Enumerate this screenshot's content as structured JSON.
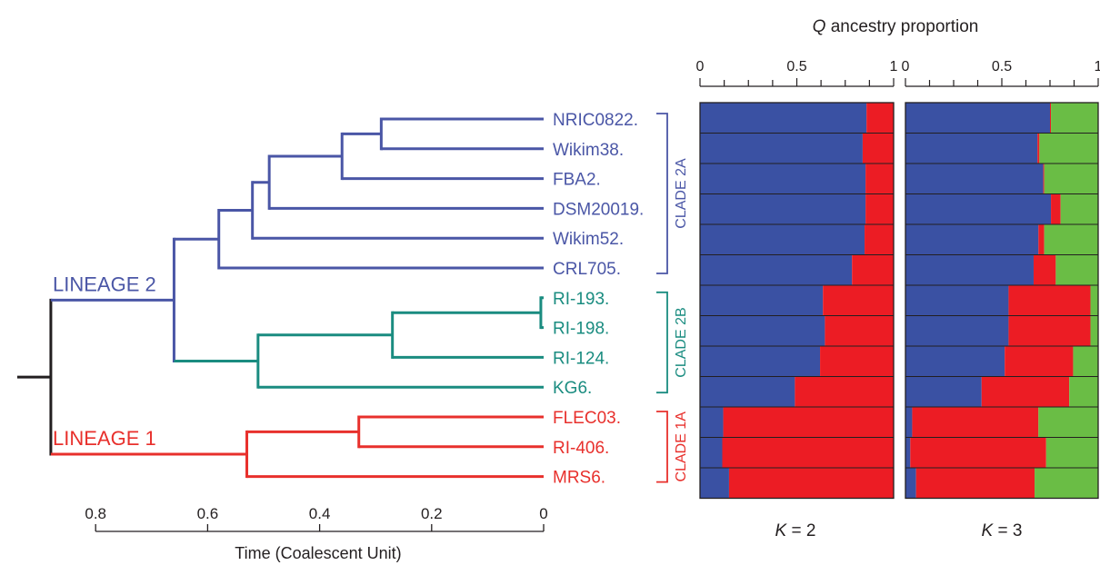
{
  "chart_data": [
    {
      "type": "tree",
      "title": "",
      "xlabel": "Time (Coalescent Unit)",
      "ylabel": "",
      "xlim": [
        0.88,
        0
      ],
      "xticks": [
        0.8,
        0.6,
        0.4,
        0.2,
        0
      ],
      "xtick_labels": [
        "0.8",
        "0.6",
        "0.4",
        "0.2",
        "0"
      ],
      "lineages": [
        {
          "name": "LINEAGE 2",
          "color": "#4a56a6"
        },
        {
          "name": "LINEAGE 1",
          "color": "#e8302c"
        }
      ],
      "clades": [
        {
          "name": "CLADE 2A",
          "color": "#4a56a6",
          "tips": [
            "NRIC0822.",
            "Wikim38.",
            "FBA2.",
            "DSM20019.",
            "Wikim52.",
            "CRL705."
          ]
        },
        {
          "name": "CLADE 2B",
          "color": "#1a8c80",
          "tips": [
            "RI-193.",
            "RI-198.",
            "RI-124.",
            "KG6."
          ]
        },
        {
          "name": "CLADE 1A",
          "color": "#e8302c",
          "tips": [
            "FLEC03.",
            "RI-406.",
            "MRS6."
          ]
        }
      ],
      "tips": [
        {
          "label": "NRIC0822.",
          "color": "#4a56a6"
        },
        {
          "label": "Wikim38.",
          "color": "#4a56a6"
        },
        {
          "label": "FBA2.",
          "color": "#4a56a6"
        },
        {
          "label": "DSM20019.",
          "color": "#4a56a6"
        },
        {
          "label": "Wikim52.",
          "color": "#4a56a6"
        },
        {
          "label": "CRL705.",
          "color": "#4a56a6"
        },
        {
          "label": "RI-193.",
          "color": "#1a8c80"
        },
        {
          "label": "RI-198.",
          "color": "#1a8c80"
        },
        {
          "label": "RI-124.",
          "color": "#1a8c80"
        },
        {
          "label": "KG6.",
          "color": "#1a8c80"
        },
        {
          "label": "FLEC03.",
          "color": "#e8302c"
        },
        {
          "label": "RI-406.",
          "color": "#e8302c"
        },
        {
          "label": "MRS6.",
          "color": "#e8302c"
        }
      ],
      "nodes": [
        {
          "id": "n_a",
          "time": 0.29,
          "children": [
            "NRIC0822.",
            "Wikim38."
          ]
        },
        {
          "id": "n_b",
          "time": 0.36,
          "children": [
            "n_a",
            "FBA2."
          ]
        },
        {
          "id": "n_c",
          "time": 0.49,
          "children": [
            "n_b",
            "DSM20019."
          ]
        },
        {
          "id": "n_d",
          "time": 0.52,
          "children": [
            "n_c",
            "Wikim52."
          ]
        },
        {
          "id": "n_e",
          "time": 0.58,
          "children": [
            "n_d",
            "CRL705."
          ]
        },
        {
          "id": "n_f",
          "time": 0.005,
          "children": [
            "RI-193.",
            "RI-198."
          ]
        },
        {
          "id": "n_g",
          "time": 0.27,
          "children": [
            "n_f",
            "RI-124."
          ]
        },
        {
          "id": "n_h",
          "time": 0.51,
          "children": [
            "n_g",
            "KG6."
          ]
        },
        {
          "id": "n_i",
          "time": 0.66,
          "children": [
            "n_e",
            "n_h"
          ]
        },
        {
          "id": "n_j",
          "time": 0.33,
          "children": [
            "FLEC03.",
            "RI-406."
          ]
        },
        {
          "id": "n_k",
          "time": 0.53,
          "children": [
            "n_j",
            "MRS6."
          ]
        },
        {
          "id": "n_root",
          "time": 0.88,
          "children": [
            "n_i",
            "n_k"
          ]
        }
      ],
      "root_stem": 0.06
    },
    {
      "type": "bar",
      "orientation": "horizontal",
      "stacked": true,
      "title": "Q ancestry proportion",
      "title_q": "Q",
      "title_rest": " ancestry proportion",
      "xlabel": "",
      "xlim": [
        0,
        1
      ],
      "xtick_labels": [
        "0",
        "0.5",
        "1"
      ],
      "panel_label": "K = 2",
      "k_letter": "K",
      "k_value": " = 2",
      "categories": [
        "NRIC0822.",
        "Wikim38.",
        "FBA2.",
        "DSM20019.",
        "Wikim52.",
        "CRL705.",
        "RI-193.",
        "RI-198.",
        "RI-124.",
        "KG6.",
        "FLEC03.",
        "RI-406.",
        "MRS6."
      ],
      "series": [
        {
          "color": "#3a51a3",
          "values": [
            0.86,
            0.84,
            0.855,
            0.855,
            0.85,
            0.785,
            0.635,
            0.645,
            0.62,
            0.49,
            0.12,
            0.115,
            0.15
          ]
        },
        {
          "color": "#ec1c24",
          "values": [
            0.14,
            0.16,
            0.145,
            0.145,
            0.15,
            0.215,
            0.365,
            0.355,
            0.38,
            0.51,
            0.88,
            0.885,
            0.85
          ]
        }
      ]
    },
    {
      "type": "bar",
      "orientation": "horizontal",
      "stacked": true,
      "title": "",
      "xlabel": "",
      "xlim": [
        0,
        1
      ],
      "xtick_labels": [
        "0",
        "0.5",
        "1"
      ],
      "panel_label": "K = 3",
      "k_letter": "K",
      "k_value": " = 3",
      "categories": [
        "NRIC0822.",
        "Wikim38.",
        "FBA2.",
        "DSM20019.",
        "Wikim52.",
        "CRL705.",
        "RI-193.",
        "RI-198.",
        "RI-124.",
        "KG6.",
        "FLEC03.",
        "RI-406.",
        "MRS6."
      ],
      "series": [
        {
          "color": "#3a51a3",
          "values": [
            0.75,
            0.685,
            0.715,
            0.755,
            0.69,
            0.665,
            0.535,
            0.535,
            0.515,
            0.395,
            0.035,
            0.025,
            0.055
          ]
        },
        {
          "color": "#ec1c24",
          "values": [
            0.005,
            0.01,
            0.005,
            0.05,
            0.03,
            0.115,
            0.425,
            0.425,
            0.355,
            0.455,
            0.655,
            0.705,
            0.615
          ]
        },
        {
          "color": "#6abd45",
          "values": [
            0.245,
            0.305,
            0.28,
            0.195,
            0.28,
            0.22,
            0.04,
            0.04,
            0.13,
            0.15,
            0.31,
            0.27,
            0.33
          ]
        }
      ]
    }
  ]
}
